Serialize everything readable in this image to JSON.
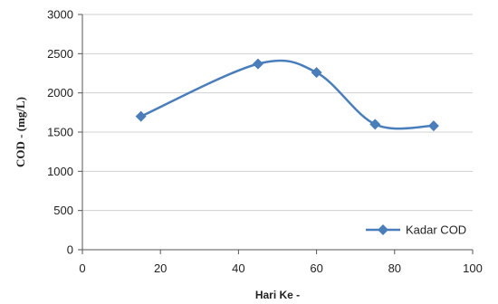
{
  "chart_data": {
    "type": "line",
    "title": "",
    "xlabel": "Hari Ke -",
    "ylabel": "COD - (mg/L)",
    "xlim": [
      0,
      100
    ],
    "ylim": [
      0,
      3000
    ],
    "x_ticks": [
      0,
      20,
      40,
      60,
      80,
      100
    ],
    "y_ticks": [
      0,
      500,
      1000,
      1500,
      2000,
      2500,
      3000
    ],
    "grid": "horizontal",
    "legend_position": "bottom-right",
    "series": [
      {
        "name": "Kadar COD",
        "color": "#4a7ebb",
        "marker": "diamond",
        "smooth": true,
        "x": [
          15,
          45,
          60,
          75,
          90
        ],
        "y": [
          1700,
          2370,
          2260,
          1600,
          1580
        ]
      }
    ]
  }
}
